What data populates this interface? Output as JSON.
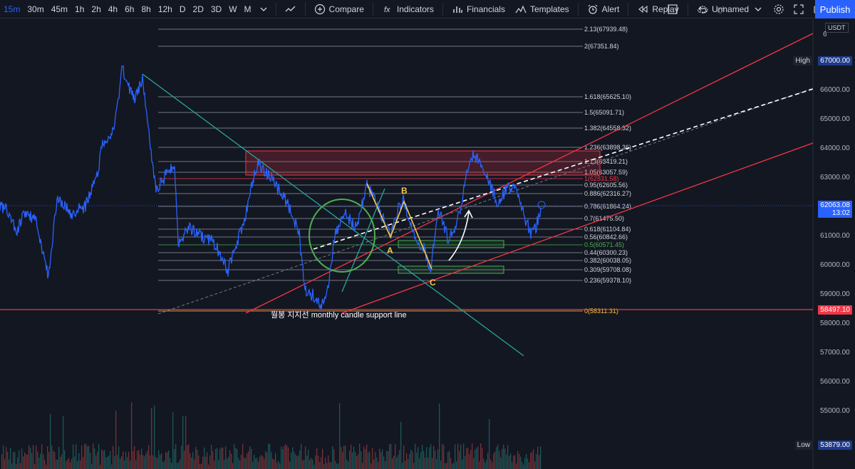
{
  "toolbar": {
    "timeframes": [
      "15m",
      "30m",
      "45m",
      "1h",
      "2h",
      "4h",
      "6h",
      "8h",
      "12h",
      "D",
      "2D",
      "3D",
      "W",
      "M"
    ],
    "compare": "Compare",
    "indicators": "Indicators",
    "financials": "Financials",
    "templates": "Templates",
    "alert": "Alert",
    "replay": "Replay",
    "layout_name": "Unnamed",
    "publish": "Publish"
  },
  "currency": "USDT",
  "price_axis": {
    "ticks": [
      "66000.00",
      "65000.00",
      "64000.00",
      "63000.00",
      "61000.00",
      "60000.00",
      "59000.00",
      "58000.00",
      "57000.00",
      "56000.00",
      "55000.00"
    ],
    "top_cut": "6",
    "high_label": "High",
    "high_value": "67000.00",
    "low_label": "Low",
    "low_value": "53879.00",
    "current_price": "62063.08",
    "countdown": "13:02",
    "support_price": "58497.10"
  },
  "fib_levels": [
    {
      "label": "2.13(67939.48)"
    },
    {
      "label": "2(67351.84)"
    },
    {
      "label": "1.618(65625.10)"
    },
    {
      "label": "1.5(65091.71)"
    },
    {
      "label": "1.382(64558.32)"
    },
    {
      "label": "1.236(63898.36)"
    },
    {
      "label": "1.13(63419.21)"
    },
    {
      "label": "1.05(63057.59)"
    },
    {
      "label": "1(62831.58)"
    },
    {
      "label": "0.95(62605.56)"
    },
    {
      "label": "0.886(62316.27)"
    },
    {
      "label": "0.786(61864.24)"
    },
    {
      "label": "0.7(61475.50)"
    },
    {
      "label": "0.618(61104.84)"
    },
    {
      "label": "0.56(60842.66)"
    },
    {
      "label": "0.5(60571.45)"
    },
    {
      "label": "0.44(60300.23)"
    },
    {
      "label": "0.382(60038.05)"
    },
    {
      "label": "0.309(59708.08)"
    },
    {
      "label": "0.236(59378.10)"
    },
    {
      "label": "0(58311.31)"
    }
  ],
  "annotations": {
    "support_text": "월봉 지지선 monthly candle support line",
    "wave_a": "A",
    "wave_b": "B",
    "wave_c": "C"
  },
  "colors": {
    "background": "#131722",
    "price_line": "#2962ff",
    "fib_line": "#9598a1",
    "channel": "#f23645",
    "trendline": "#26a69a",
    "abc": "#f7c948",
    "zone_green": "#4caf50",
    "publish": "#2962ff"
  }
}
